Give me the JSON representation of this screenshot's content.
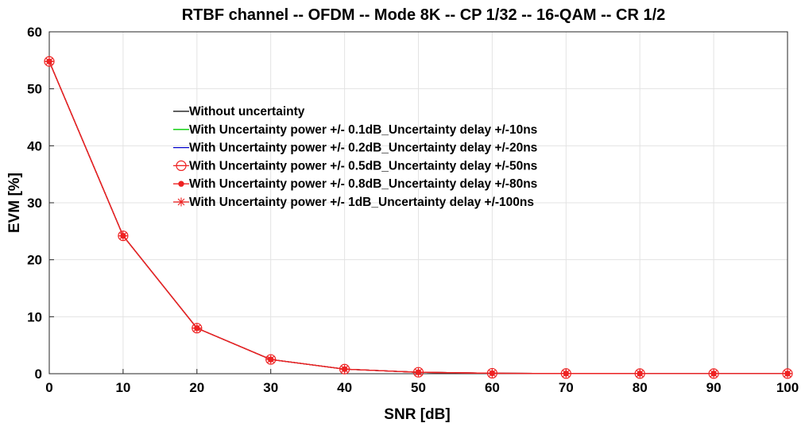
{
  "chart_data": {
    "type": "line",
    "title": "RTBF channel -- OFDM -- Mode 8K -- CP 1/32 -- 16-QAM -- CR 1/2",
    "xlabel": "SNR [dB]",
    "ylabel": "EVM [%]",
    "xlim": [
      0,
      100
    ],
    "ylim": [
      0,
      60
    ],
    "xticks": [
      0,
      10,
      20,
      30,
      40,
      50,
      60,
      70,
      80,
      90,
      100
    ],
    "yticks": [
      0,
      10,
      20,
      30,
      40,
      50,
      60
    ],
    "grid": true,
    "legend_placement": "center-left",
    "x": [
      0,
      10,
      20,
      30,
      40,
      50,
      60,
      70,
      80,
      90,
      100
    ],
    "series": [
      {
        "name": "Without uncertainty",
        "color": "#000000",
        "marker": "none",
        "values": [
          54.8,
          24.2,
          8.0,
          2.5,
          0.8,
          0.25,
          0.08,
          0.03,
          0.02,
          0.02,
          0.02
        ]
      },
      {
        "name": "With Uncertainty power +/- 0.1dB_Uncertainty delay +/-10ns",
        "color": "#00cc00",
        "marker": "none",
        "values": [
          54.8,
          24.2,
          8.0,
          2.5,
          0.8,
          0.25,
          0.08,
          0.03,
          0.02,
          0.02,
          0.02
        ]
      },
      {
        "name": "With Uncertainty power +/- 0.2dB_Uncertainty delay +/-20ns",
        "color": "#0000cc",
        "marker": "none",
        "values": [
          54.8,
          24.2,
          8.0,
          2.5,
          0.8,
          0.25,
          0.08,
          0.03,
          0.02,
          0.02,
          0.02
        ]
      },
      {
        "name": "With Uncertainty power +/- 0.5dB_Uncertainty delay +/-50ns",
        "color": "#ee2222",
        "marker": "circle",
        "values": [
          54.8,
          24.2,
          8.0,
          2.5,
          0.8,
          0.25,
          0.08,
          0.03,
          0.02,
          0.02,
          0.02
        ]
      },
      {
        "name": "With Uncertainty power +/- 0.8dB_Uncertainty delay +/-80ns",
        "color": "#ee2222",
        "marker": "dot",
        "values": [
          54.8,
          24.2,
          8.0,
          2.5,
          0.8,
          0.25,
          0.08,
          0.03,
          0.02,
          0.02,
          0.02
        ]
      },
      {
        "name": "With Uncertainty power +/- 1dB_Uncertainty delay +/-100ns",
        "color": "#ee2222",
        "marker": "asterisk",
        "values": [
          54.8,
          24.2,
          8.0,
          2.5,
          0.8,
          0.25,
          0.08,
          0.03,
          0.02,
          0.02,
          0.02
        ]
      }
    ]
  }
}
